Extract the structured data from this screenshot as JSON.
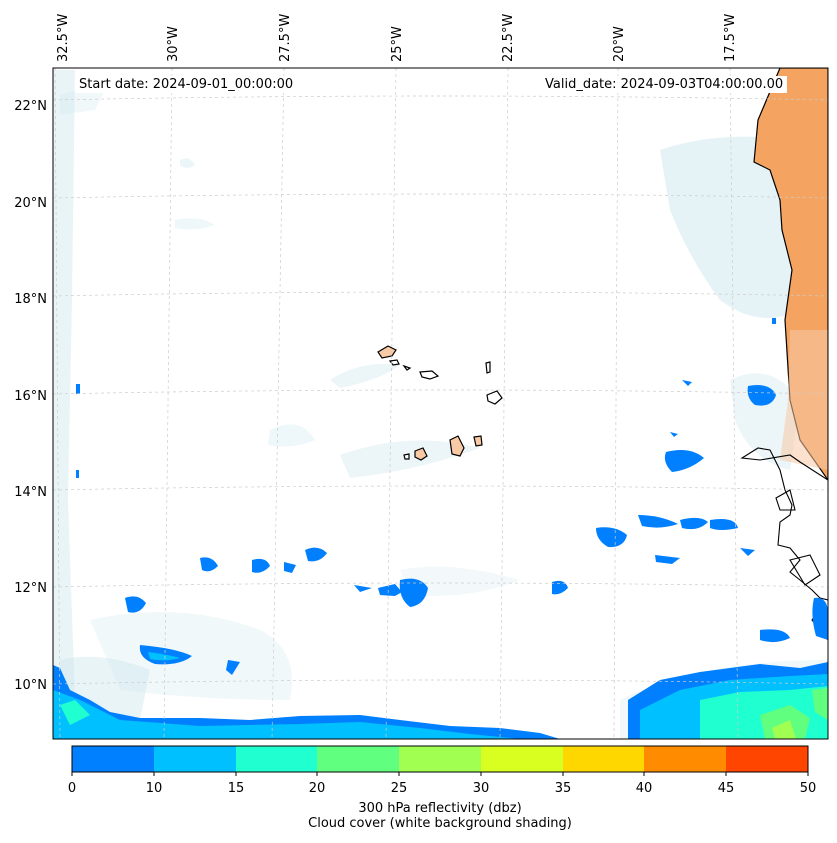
{
  "map": {
    "start_date": "Start date: 2024-09-01_00:00:00",
    "valid_date": "Valid_date: 2024-09-03T04:00:00.00",
    "lon_labels": [
      "32.5°W",
      "30°W",
      "27.5°W",
      "25°W",
      "22.5°W",
      "20°W",
      "17.5°W"
    ],
    "lat_labels": [
      "22°N",
      "20°N",
      "18°N",
      "16°N",
      "14°N",
      "12°N",
      "10°N"
    ],
    "colors": {
      "land": "#f4a460",
      "cloud": "#cfe7ee",
      "coastline": "#000000",
      "gridline": "#cccccc"
    }
  },
  "colorbar": {
    "ticks": [
      "0",
      "10",
      "15",
      "20",
      "25",
      "30",
      "35",
      "40",
      "45",
      "50"
    ],
    "colors": [
      "#0080ff",
      "#00c0ff",
      "#20ffd0",
      "#60ff80",
      "#a0ff50",
      "#d8ff20",
      "#ffd700",
      "#ff8c00",
      "#ff4500"
    ],
    "label": "300 hPa reflectivity (dbz)",
    "sublabel": "Cloud cover (white background shading)"
  }
}
